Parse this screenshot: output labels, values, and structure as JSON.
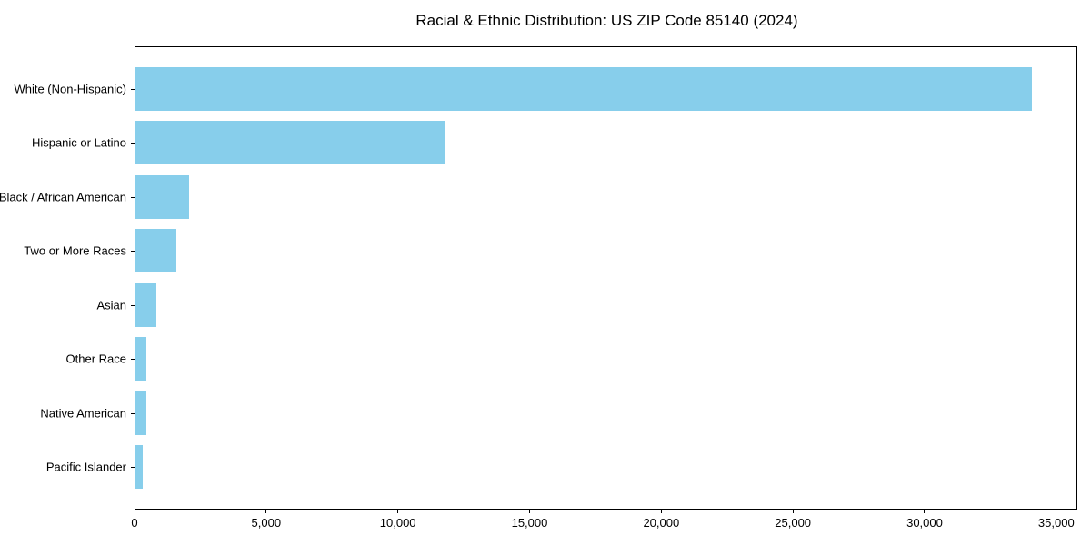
{
  "title": "Racial & Ethnic Distribution: US ZIP Code 85140 (2024)",
  "colors": {
    "bar": "#87CEEB",
    "axis": "#000000",
    "background": "#ffffff"
  },
  "chart_data": {
    "type": "bar",
    "orientation": "horizontal",
    "title": "Racial & Ethnic Distribution: US ZIP Code 85140 (2024)",
    "categories": [
      "White (Non-Hispanic)",
      "Hispanic or Latino",
      "Black / African American",
      "Two or More Races",
      "Asian",
      "Other Race",
      "Native American",
      "Pacific Islander"
    ],
    "values": [
      34100,
      11750,
      2040,
      1560,
      800,
      420,
      410,
      280
    ],
    "xlabel": "",
    "ylabel": "",
    "xlim": [
      0,
      35800
    ],
    "x_ticks": [
      0,
      5000,
      10000,
      15000,
      20000,
      25000,
      30000,
      35000
    ],
    "x_tick_labels": [
      "0",
      "5,000",
      "10,000",
      "15,000",
      "20,000",
      "25,000",
      "30,000",
      "35,000"
    ],
    "grid": false,
    "legend": null,
    "bar_color": "#87CEEB"
  }
}
